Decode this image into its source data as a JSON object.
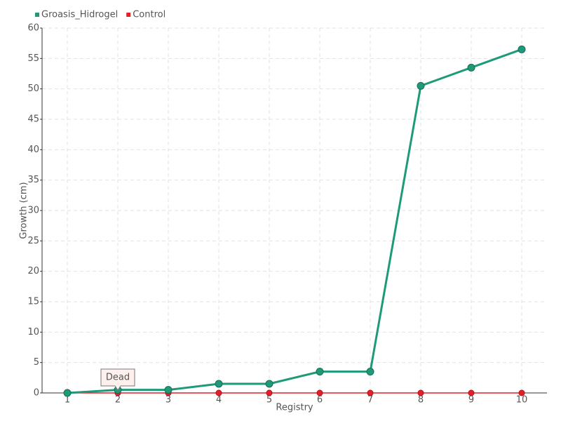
{
  "chart_data": {
    "type": "line",
    "categories": [
      "1",
      "2",
      "3",
      "4",
      "5",
      "6",
      "7",
      "8",
      "9",
      "10"
    ],
    "series": [
      {
        "name": "Groasis_Hidrogel",
        "color": "#1e9a78",
        "values": [
          0,
          0.5,
          0.5,
          1.5,
          1.5,
          3.5,
          3.5,
          50.5,
          53.5,
          56.5
        ]
      },
      {
        "name": "Control",
        "color": "#e3202a",
        "values": [
          0,
          0,
          0,
          0,
          0,
          0,
          0,
          0,
          0,
          0
        ]
      }
    ],
    "x_label": "Registry",
    "y_label": "Growth (cm)",
    "ylim": [
      0,
      60
    ],
    "yticks": [
      0,
      5,
      10,
      15,
      20,
      25,
      30,
      35,
      40,
      45,
      50,
      55,
      60
    ],
    "grid": true,
    "legend": "top-left",
    "annotations": [
      {
        "text": "Dead",
        "x": "2",
        "series": "Control"
      }
    ]
  }
}
